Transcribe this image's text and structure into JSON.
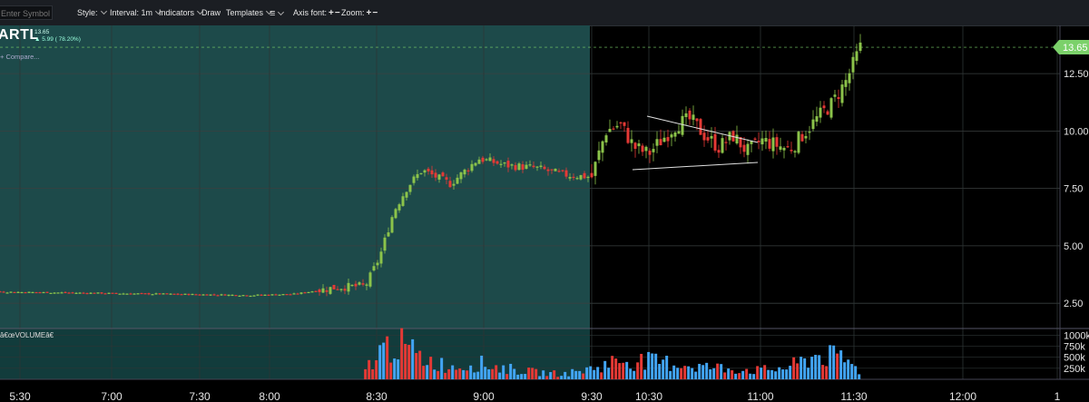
{
  "toolbar": {
    "symbol_placeholder": "Enter Symbol",
    "style_label": "Style:",
    "interval_label": "Interval: 1m",
    "indicators_label": "Indicators",
    "draw_label": "Draw",
    "templates_label": "Templates",
    "axis_font_label": "Axis font:",
    "zoom_label": "Zoom:",
    "plus_minus": "+−"
  },
  "header": {
    "ticker": "ARTL",
    "price": "13.65",
    "change": "▲ 5.99 ( 78.20%)",
    "compare": "+ Compare..."
  },
  "volume_label": "â€œVOLUMEâ€",
  "colors": {
    "up": "#8bc34a",
    "down": "#e53935",
    "vol_up": "#42a5f5",
    "vol_down": "#e53935",
    "premarket_bg": "#1d4a4a",
    "session_bg": "#000000",
    "last_price_tag": "#7bd16a"
  },
  "chart_data": {
    "type": "candlestick",
    "symbol": "ARTL",
    "interval": "1m",
    "last_price": 13.65,
    "y_ticks": [
      2.5,
      5,
      7.5,
      10,
      12.5
    ],
    "y_tick_labels": [
      "2.50",
      "5.00",
      "7.50",
      "10.00",
      "12.50"
    ],
    "ylim": [
      1.4,
      14.6
    ],
    "x_tick_labels": [
      "5:30",
      "7:00",
      "7:30",
      "8:00",
      "8:30",
      "9:00",
      "9:30",
      "10:30",
      "11:00",
      "11:30",
      "12:00",
      "1"
    ],
    "volume_tick_labels": [
      "1000k",
      "750k",
      "500k",
      "250k"
    ],
    "volume_ylim": [
      0,
      1150
    ],
    "price_series": [
      {
        "t": "05:30",
        "c": 3.05
      },
      {
        "t": "06:00",
        "c": 3.0
      },
      {
        "t": "06:30",
        "c": 2.95
      },
      {
        "t": "07:00",
        "c": 2.9
      },
      {
        "t": "07:30",
        "c": 2.85
      },
      {
        "t": "07:45",
        "c": 2.9
      },
      {
        "t": "08:00",
        "c": 3.2
      },
      {
        "t": "08:10",
        "c": 3.25
      },
      {
        "t": "08:15",
        "c": 4.5
      },
      {
        "t": "08:20",
        "c": 6.5
      },
      {
        "t": "08:25",
        "c": 7.6
      },
      {
        "t": "08:30",
        "c": 8.3
      },
      {
        "t": "08:40",
        "c": 7.7
      },
      {
        "t": "08:50",
        "c": 8.8
      },
      {
        "t": "09:00",
        "c": 8.5
      },
      {
        "t": "09:10",
        "c": 8.4
      },
      {
        "t": "09:20",
        "c": 8.1
      },
      {
        "t": "09:30",
        "c": 8.0
      },
      {
        "t": "09:35",
        "c": 10.0
      },
      {
        "t": "09:40",
        "c": 10.3
      },
      {
        "t": "09:45",
        "c": 9.3
      },
      {
        "t": "09:50",
        "c": 9.0
      },
      {
        "t": "10:00",
        "c": 10.3
      },
      {
        "t": "10:05",
        "c": 10.5
      },
      {
        "t": "10:10",
        "c": 9.8
      },
      {
        "t": "10:15",
        "c": 9.3
      },
      {
        "t": "10:20",
        "c": 9.8
      },
      {
        "t": "10:25",
        "c": 9.1
      },
      {
        "t": "10:30",
        "c": 9.6
      },
      {
        "t": "10:35",
        "c": 9.4
      },
      {
        "t": "10:40",
        "c": 9.2
      },
      {
        "t": "10:45",
        "c": 9.9
      },
      {
        "t": "10:50",
        "c": 10.6
      },
      {
        "t": "10:55",
        "c": 11.2
      },
      {
        "t": "11:00",
        "c": 12.2
      },
      {
        "t": "11:05",
        "c": 13.65
      }
    ],
    "volume_series": [
      {
        "t": "08:10",
        "v": 300
      },
      {
        "t": "08:15",
        "v": 750
      },
      {
        "t": "08:20",
        "v": 1050
      },
      {
        "t": "08:25",
        "v": 850
      },
      {
        "t": "08:30",
        "v": 600
      },
      {
        "t": "08:40",
        "v": 350
      },
      {
        "t": "08:50",
        "v": 450
      },
      {
        "t": "09:00",
        "v": 300
      },
      {
        "t": "09:10",
        "v": 200
      },
      {
        "t": "09:20",
        "v": 150
      },
      {
        "t": "09:30",
        "v": 300
      },
      {
        "t": "09:40",
        "v": 550
      },
      {
        "t": "09:50",
        "v": 500
      },
      {
        "t": "10:00",
        "v": 450
      },
      {
        "t": "10:10",
        "v": 350
      },
      {
        "t": "10:20",
        "v": 300
      },
      {
        "t": "10:30",
        "v": 250
      },
      {
        "t": "10:40",
        "v": 350
      },
      {
        "t": "10:50",
        "v": 700
      },
      {
        "t": "11:00",
        "v": 550
      },
      {
        "t": "11:05",
        "v": 200
      }
    ],
    "annotations": [
      "symmetrical triangle trendlines (approx. 10:05–10:55)"
    ]
  }
}
